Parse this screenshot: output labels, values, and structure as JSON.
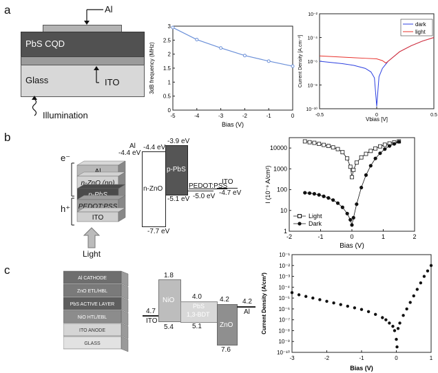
{
  "panels": [
    "a",
    "b",
    "c"
  ],
  "device_a": {
    "top_contact": "Al",
    "active_layer": "PbS CQD",
    "substrate": "Glass",
    "electrode": "ITO",
    "illumination": "Illumination"
  },
  "device_b": {
    "layers": [
      "Al",
      "n-ZnO (np)",
      "p-PbS",
      "PEDOT:PSS",
      "ITO"
    ],
    "electron": "e⁻",
    "hole": "h⁺",
    "light": "Light",
    "band": {
      "al_name": "Al",
      "al_level": "-4.4 eV",
      "zno_top": "-4.4 eV",
      "zno_name": "n-ZnO",
      "zno_bottom": "-7.7 eV",
      "pbs_top": "-3.9 eV",
      "pbs_name": "p-PbS",
      "pbs_bottom": "-5.1 eV",
      "pedot_name": "PEDOT:PSS",
      "pedot_level": "-5.0 eV",
      "ito_name": "ITO",
      "ito_level": "-4.7 eV"
    }
  },
  "device_c": {
    "stack": [
      "Al CATHODE",
      "ZnO ETL/HBL",
      "PbS ACTIVE LAYER",
      "NiO HTL/EBL",
      "ITO ANODE",
      "GLASS"
    ],
    "band": {
      "ito_name": "ITO",
      "ito_level": "4.7",
      "nio_name": "NiO",
      "nio_top": "1.8",
      "nio_bottom": "5.4",
      "pbs_name": "PbS",
      "pbs_sub": "1,3-BDT",
      "pbs_top": "4.0",
      "pbs_bottom": "5.1",
      "zno_name": "ZnO",
      "zno_top": "4.2",
      "zno_bottom": "7.6",
      "al_name": "Al",
      "al_level": "4.2"
    }
  },
  "chart_data": [
    {
      "id": "a-freq",
      "type": "line",
      "xlabel": "Bias (V)",
      "ylabel": "3dB frequency (MHz)",
      "xlim": [
        -5,
        0
      ],
      "ylim": [
        0,
        3
      ],
      "x_ticks": [
        "-5",
        "-4",
        "-3",
        "-2",
        "-1",
        "0"
      ],
      "y_ticks": [
        "0",
        "0.5",
        "1",
        "1.5",
        "2",
        "2.5",
        "3"
      ],
      "series": [
        {
          "x": [
            -5,
            -4,
            -3,
            -2,
            -1,
            0
          ],
          "values": [
            2.95,
            2.52,
            2.22,
            1.95,
            1.75,
            1.57
          ],
          "color": "#6a8fd8"
        }
      ]
    },
    {
      "id": "a-jv",
      "type": "line",
      "xlabel": "Vbias [V]",
      "ylabel": "Current Density [A.cm⁻²]",
      "xlim": [
        -0.5,
        0.5
      ],
      "ylim_log": [
        -10,
        -2
      ],
      "x_ticks": [
        "-0.5",
        "0",
        "0.5"
      ],
      "y_ticks": [
        "10⁻²",
        "10⁻⁴",
        "10⁻⁶",
        "10⁻⁸",
        "10⁻¹⁰"
      ],
      "legend": "top-right",
      "series": [
        {
          "name": "dark",
          "color": "#2b3fe0",
          "x": [
            -0.5,
            -0.4,
            -0.3,
            -0.2,
            -0.1,
            -0.05,
            -0.02,
            0,
            0.02,
            0.05,
            0.1,
            0.2,
            0.3,
            0.4,
            0.5
          ],
          "values": [
            -6.0,
            -6.1,
            -6.2,
            -6.35,
            -6.6,
            -6.9,
            -7.4,
            -9.8,
            -7.3,
            -6.6,
            -6.0,
            -5.2,
            -4.7,
            -4.3,
            -4.0
          ]
        },
        {
          "name": "light",
          "color": "#e8302a",
          "x": [
            -0.5,
            -0.4,
            -0.3,
            -0.2,
            -0.1,
            0,
            0.05,
            0.08,
            0.1,
            0.15,
            0.2,
            0.3,
            0.4,
            0.5
          ],
          "values": [
            -5.55,
            -5.6,
            -5.65,
            -5.7,
            -5.75,
            -5.8,
            -5.95,
            -6.15,
            -6.0,
            -5.6,
            -5.2,
            -4.7,
            -4.3,
            -4.0
          ]
        }
      ]
    },
    {
      "id": "b-iv",
      "type": "scatter",
      "xlabel": "Bias (V)",
      "ylabel": "I (10⁻⁹ A/cm²)",
      "xlim": [
        -2,
        2
      ],
      "ylim_log": [
        0,
        4.5
      ],
      "x_ticks": [
        "-2",
        "-1",
        "0",
        "1",
        "2"
      ],
      "y_ticks": [
        "1",
        "10",
        "100",
        "1000",
        "10000"
      ],
      "legend": "bottom-left",
      "series": [
        {
          "name": "Light",
          "marker": "open-square",
          "x": [
            -1.5,
            -1.35,
            -1.2,
            -1.05,
            -0.9,
            -0.75,
            -0.6,
            -0.45,
            -0.3,
            -0.15,
            -0.05,
            0,
            0.05,
            0.15,
            0.3,
            0.45,
            0.6,
            0.75,
            0.9,
            1.05,
            1.2,
            1.35,
            1.5
          ],
          "values": [
            4.32,
            4.28,
            4.25,
            4.2,
            4.15,
            4.1,
            4.03,
            3.95,
            3.8,
            3.5,
            3.1,
            2.6,
            2.95,
            3.3,
            3.55,
            3.72,
            3.86,
            3.98,
            4.08,
            4.16,
            4.22,
            4.27,
            4.32
          ]
        },
        {
          "name": "Dark",
          "marker": "filled-circle",
          "x": [
            -1.5,
            -1.35,
            -1.2,
            -1.05,
            -0.9,
            -0.75,
            -0.6,
            -0.45,
            -0.3,
            -0.15,
            -0.05,
            0,
            0.05,
            0.15,
            0.3,
            0.45,
            0.6,
            0.75,
            0.9,
            1.05,
            1.2,
            1.35,
            1.5
          ],
          "values": [
            1.85,
            1.83,
            1.8,
            1.75,
            1.68,
            1.6,
            1.5,
            1.35,
            1.15,
            0.85,
            0.55,
            0.3,
            0.65,
            1.3,
            2.1,
            2.7,
            3.15,
            3.5,
            3.75,
            3.95,
            4.1,
            4.2,
            4.3
          ]
        }
      ]
    },
    {
      "id": "c-jv",
      "type": "scatter",
      "xlabel": "Bias (V)",
      "ylabel": "Current Density (A/cm²)",
      "xlim": [
        -3,
        1
      ],
      "ylim_log": [
        -10,
        -1
      ],
      "x_ticks": [
        "-3",
        "-2",
        "-1",
        "0",
        "1"
      ],
      "y_ticks": [
        "10⁻¹",
        "10⁻²",
        "10⁻³",
        "10⁻⁴",
        "10⁻⁵",
        "10⁻⁶",
        "10⁻⁷",
        "10⁻⁸",
        "10⁻⁹",
        "10⁻¹⁰"
      ],
      "series": [
        {
          "name": "",
          "marker": "filled-circle",
          "x": [
            -3,
            -2.8,
            -2.6,
            -2.4,
            -2.2,
            -2,
            -1.8,
            -1.6,
            -1.4,
            -1.2,
            -1,
            -0.8,
            -0.6,
            -0.4,
            -0.3,
            -0.2,
            -0.1,
            -0.05,
            0,
            0.02,
            0.05,
            0.1,
            0.2,
            0.3,
            0.4,
            0.5,
            0.6,
            0.7,
            0.8,
            0.9,
            1.0
          ],
          "values": [
            -4.5,
            -4.7,
            -4.85,
            -5.0,
            -5.15,
            -5.3,
            -5.45,
            -5.6,
            -5.75,
            -5.9,
            -6.05,
            -6.25,
            -6.5,
            -6.8,
            -7.0,
            -7.3,
            -7.6,
            -8.0,
            -8.8,
            -9.5,
            -7.8,
            -7.3,
            -6.6,
            -6.0,
            -5.4,
            -4.8,
            -4.2,
            -3.6,
            -3.0,
            -2.5,
            -2.0
          ]
        }
      ]
    }
  ]
}
